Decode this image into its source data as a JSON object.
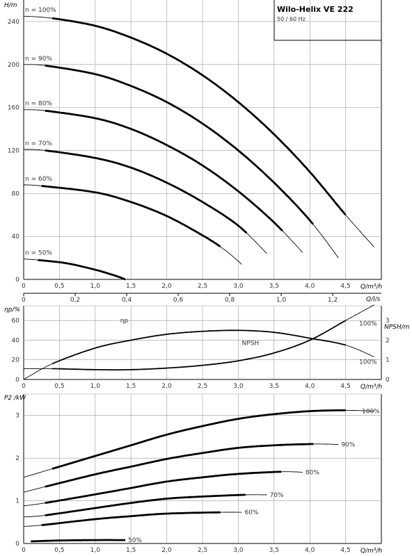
{
  "title_box": {
    "title": "Wilo-Helix VE 222",
    "subtitle": "50 / 60 Hz"
  },
  "chart_data": [
    {
      "type": "line",
      "name": "head",
      "ylabel": "H/m",
      "xlabel": "Q/m³/h",
      "xlabel2": "Q/l/s",
      "xlim": [
        0,
        5
      ],
      "ylim": [
        0,
        260
      ],
      "xticks": [
        "0",
        "0,5",
        "1,0",
        "1,5",
        "2,0",
        "2,5",
        "3,0",
        "3,5",
        "4,0",
        "4,5"
      ],
      "xticks2": [
        "0",
        "0,2",
        "0,4",
        "0,6",
        "0,8",
        "1,0",
        "1,2"
      ],
      "yticks": [
        "0",
        "40",
        "80",
        "120",
        "160",
        "200",
        "240"
      ],
      "series": [
        {
          "name": "n = 100%",
          "x": [
            0,
            0.4,
            1.0,
            1.5,
            2.0,
            2.5,
            3.0,
            3.5,
            4.0,
            4.5,
            4.9
          ],
          "y": [
            245,
            243,
            236,
            225,
            210,
            190,
            165,
            135,
            100,
            60,
            30
          ],
          "thick": [
            0.4,
            4.5
          ]
        },
        {
          "name": "n = 90%",
          "x": [
            0,
            0.3,
            1.0,
            1.5,
            2.0,
            2.5,
            3.0,
            3.5,
            4.0,
            4.4
          ],
          "y": [
            200,
            199,
            191,
            180,
            165,
            145,
            120,
            90,
            55,
            20
          ],
          "thick": [
            0.3,
            4.05
          ]
        },
        {
          "name": "n = 80%",
          "x": [
            0,
            0.3,
            1.0,
            1.5,
            2.0,
            2.5,
            3.0,
            3.5,
            3.9
          ],
          "y": [
            158,
            157,
            150,
            140,
            125,
            106,
            82,
            53,
            25
          ],
          "thick": [
            0.3,
            3.6
          ]
        },
        {
          "name": "n = 70%",
          "x": [
            0,
            0.3,
            1.0,
            1.5,
            2.0,
            2.5,
            3.0,
            3.4
          ],
          "y": [
            121,
            120,
            113,
            104,
            90,
            72,
            50,
            24
          ],
          "thick": [
            0.3,
            3.1
          ]
        },
        {
          "name": "n = 60%",
          "x": [
            0,
            0.25,
            1.0,
            1.5,
            2.0,
            2.5,
            2.8,
            3.05
          ],
          "y": [
            88,
            87,
            81,
            72,
            59,
            41,
            28,
            14
          ],
          "thick": [
            0.25,
            2.75
          ]
        },
        {
          "name": "n = 50%",
          "x": [
            0,
            0.2,
            0.6,
            1.0,
            1.3,
            1.42
          ],
          "y": [
            19,
            18,
            15,
            9,
            3,
            0
          ],
          "thick": [
            0.2,
            1.42
          ]
        }
      ]
    },
    {
      "type": "line",
      "name": "efficiency-npsh",
      "ylabel": "ηp/%",
      "ylabel2": "NPSH/m",
      "xlabel": "Q/m³/h",
      "xlim": [
        0,
        5
      ],
      "ylim": [
        0,
        75
      ],
      "ylim2": [
        0,
        3.75
      ],
      "xticks": [
        "0",
        "0,5",
        "1,0",
        "1,5",
        "2,0",
        "2,5",
        "3,0",
        "3,5",
        "4,0",
        "4,5"
      ],
      "yticks": [
        "0",
        "20",
        "40",
        "60"
      ],
      "yticks2": [
        "0",
        "1",
        "2",
        "3"
      ],
      "series": [
        {
          "name": "ηp",
          "x": [
            0,
            0.4,
            1.0,
            1.5,
            2.0,
            2.5,
            3.0,
            3.5,
            4.0,
            4.5,
            4.9
          ],
          "y": [
            0,
            16,
            32,
            40,
            46,
            49,
            50,
            48,
            42,
            35,
            23
          ],
          "thick": [
            0.4,
            4.5
          ],
          "label": "ηp",
          "end_label": "100%"
        },
        {
          "name": "NPSH",
          "axis": "right",
          "x": [
            0,
            0.4,
            1.0,
            1.5,
            2.0,
            2.5,
            3.0,
            3.5,
            4.0,
            4.5,
            4.9
          ],
          "y": [
            0.55,
            0.55,
            0.5,
            0.5,
            0.58,
            0.72,
            0.95,
            1.35,
            2.0,
            3.0,
            3.8
          ],
          "thick": [
            0.4,
            4.5
          ],
          "label": "NPSH",
          "end_label": "100%"
        }
      ]
    },
    {
      "type": "line",
      "name": "power",
      "ylabel": "P2 /kW",
      "xlabel": "Q/m³/h",
      "xlim": [
        0,
        5
      ],
      "ylim": [
        0,
        3.5
      ],
      "xticks": [
        "0",
        "0,5",
        "1,0",
        "1,5",
        "2,0",
        "2,5",
        "3,0",
        "3,5",
        "4,0",
        "4,5"
      ],
      "yticks": [
        "0",
        "1",
        "2",
        "3"
      ],
      "series": [
        {
          "name": "100%",
          "x": [
            0,
            0.4,
            1.0,
            1.5,
            2.0,
            2.5,
            3.0,
            3.5,
            4.0,
            4.5,
            4.9
          ],
          "y": [
            1.55,
            1.75,
            2.05,
            2.3,
            2.55,
            2.75,
            2.92,
            3.03,
            3.1,
            3.12,
            3.1
          ],
          "thick": [
            0.4,
            4.5
          ]
        },
        {
          "name": "90%",
          "x": [
            0,
            0.3,
            1.0,
            1.5,
            2.0,
            2.5,
            3.0,
            3.5,
            4.05,
            4.4
          ],
          "y": [
            1.2,
            1.33,
            1.62,
            1.8,
            1.98,
            2.12,
            2.24,
            2.3,
            2.33,
            2.32
          ],
          "thick": [
            0.3,
            4.05
          ]
        },
        {
          "name": "80%",
          "x": [
            0,
            0.3,
            1.0,
            1.5,
            2.0,
            2.5,
            3.0,
            3.6,
            3.9
          ],
          "y": [
            0.88,
            0.95,
            1.15,
            1.3,
            1.45,
            1.55,
            1.63,
            1.68,
            1.67
          ],
          "thick": [
            0.3,
            3.6
          ]
        },
        {
          "name": "70%",
          "x": [
            0,
            0.3,
            1.0,
            1.5,
            2.0,
            2.5,
            3.1,
            3.4
          ],
          "y": [
            0.62,
            0.66,
            0.83,
            0.95,
            1.05,
            1.1,
            1.14,
            1.14
          ],
          "thick": [
            0.3,
            3.1
          ]
        },
        {
          "name": "60%",
          "x": [
            0,
            0.25,
            1.0,
            1.5,
            2.0,
            2.75,
            3.05
          ],
          "y": [
            0.4,
            0.43,
            0.57,
            0.64,
            0.7,
            0.73,
            0.73
          ],
          "thick": [
            0.25,
            2.75
          ]
        },
        {
          "name": "50%",
          "x": [
            0.1,
            0.5,
            1.0,
            1.42
          ],
          "y": [
            0.05,
            0.07,
            0.08,
            0.08
          ],
          "thick": [
            0.1,
            1.42
          ]
        }
      ]
    }
  ]
}
